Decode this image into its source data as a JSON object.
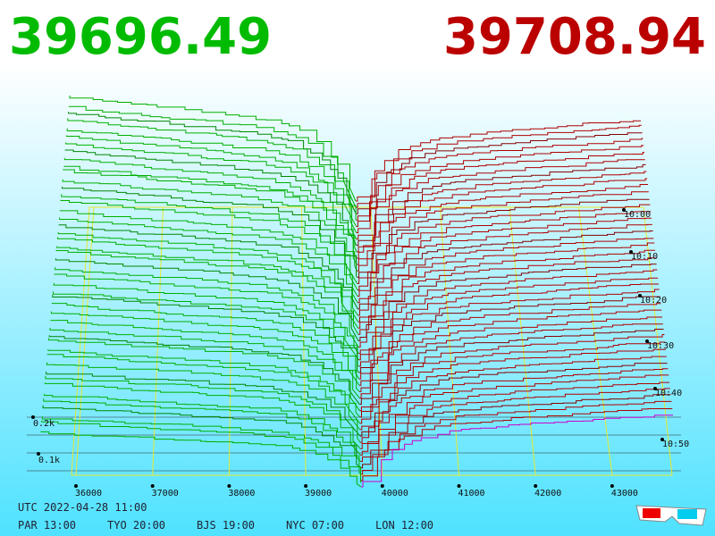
{
  "prices": {
    "bid": "39696.49",
    "ask": "39708.94"
  },
  "price_axis": [
    "36000",
    "37000",
    "38000",
    "39000",
    "40000",
    "41000",
    "42000",
    "43000"
  ],
  "time_axis": [
    "10:00",
    "10:10",
    "10:20",
    "10:30",
    "10:40",
    "10:50"
  ],
  "volume_axis": [
    "0.2k",
    "0.1k"
  ],
  "footer": {
    "utc": "UTC 2022-04-28 11:00",
    "zones": [
      "PAR 13:00",
      "TYO 20:00",
      "BJS 19:00",
      "NYC 07:00",
      "LON 12:00"
    ]
  }
}
